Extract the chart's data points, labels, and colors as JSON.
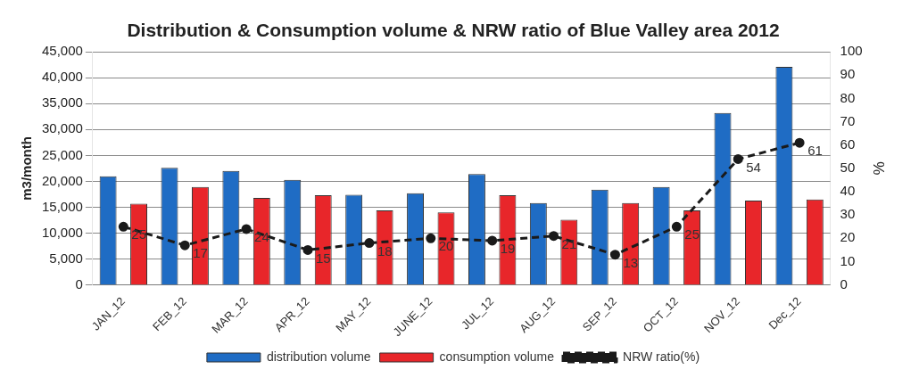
{
  "chart_data": {
    "type": "bar",
    "title": "Distribution & Consumption volume & NRW ratio of Blue Valley area 2012",
    "ylabel": "m3/month",
    "y2label": "%",
    "categories": [
      "JAN_12",
      "FEB_12",
      "MAR_12",
      "APR_12",
      "MAY_12",
      "JUNE_12",
      "JUL_12",
      "AUG_12",
      "SEP_12",
      "OCT_12",
      "NOV_12",
      "Dec_12"
    ],
    "series": [
      {
        "name": "distribution volume",
        "color": "#1f6cc4",
        "values": [
          21000,
          22600,
          22000,
          20300,
          17400,
          17700,
          21400,
          15800,
          18400,
          18900,
          33200,
          42100
        ]
      },
      {
        "name": "consumption volume",
        "color": "#e8262a",
        "values": [
          15700,
          18900,
          16800,
          17300,
          14400,
          14000,
          17300,
          12600,
          15800,
          14400,
          16300,
          16500
        ]
      },
      {
        "name": "NRW ratio(%)",
        "type": "line",
        "axis": "y2",
        "color": "#1a1a1a",
        "marker": "circle",
        "line_style": "dashed",
        "data_labels": true,
        "values": [
          25,
          17,
          24,
          15,
          18,
          20,
          19,
          21,
          13,
          25,
          54,
          61
        ]
      }
    ],
    "ylim": [
      0,
      45000
    ],
    "yticks": [
      0,
      {
        "value": 5000,
        "label": "5,000"
      },
      {
        "value": 10000,
        "label": "10,000"
      },
      {
        "value": 15000,
        "label": "15,000"
      },
      {
        "value": 20000,
        "label": "20,000"
      },
      {
        "value": 25000,
        "label": "25,000"
      },
      {
        "value": 30000,
        "label": "30,000"
      },
      {
        "value": 35000,
        "label": "35,000"
      },
      {
        "value": 40000,
        "label": "40,000"
      },
      {
        "value": 45000,
        "label": "45,000"
      }
    ],
    "y2lim": [
      0,
      100
    ],
    "y2ticks": [
      0,
      10,
      20,
      30,
      40,
      50,
      60,
      70,
      80,
      90,
      100
    ],
    "grid": "y",
    "legend": "bottom"
  }
}
